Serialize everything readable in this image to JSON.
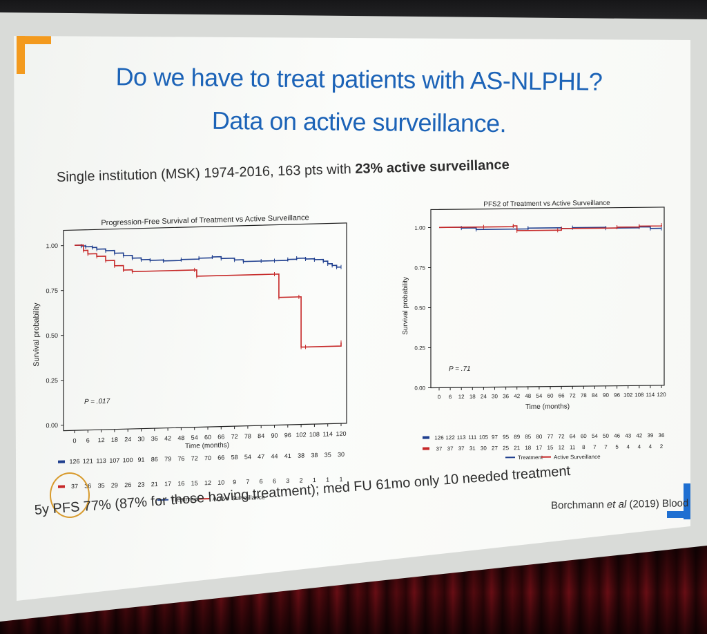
{
  "slide": {
    "title_line1": "Do we have to treat patients with AS-NLPHL?",
    "title_line2": "Data on active surveillance.",
    "subtitle_plain": "Single institution (MSK) 1974-2016, 163 pts with ",
    "subtitle_bold": "23% active surveillance",
    "footer": "5y PFS 77% (87% for those having treatment); med FU 61mo only 10 needed treatment",
    "citation_author": "Borchmann ",
    "citation_etal": "et al",
    "citation_rest": " (2019) Blood",
    "accent_blue": "#1c63b7",
    "accent_orange": "#f39a1e"
  },
  "chart_data": [
    {
      "type": "line",
      "title": "Progression-Free Survival of Treatment vs Active Surveillance",
      "xlabel": "Time (months)",
      "ylabel": "Survival probability",
      "xlim": [
        0,
        120
      ],
      "ylim": [
        0,
        1
      ],
      "xticks": [
        "0",
        "6",
        "12",
        "18",
        "24",
        "30",
        "36",
        "42",
        "48",
        "54",
        "60",
        "66",
        "72",
        "78",
        "84",
        "90",
        "96",
        "102",
        "108",
        "114",
        "120"
      ],
      "yticks": [
        "0.00",
        "0.25",
        "0.50",
        "0.75",
        "1.00"
      ],
      "annotation": "P = .017",
      "legend": [
        "Treatment",
        "Active Surveillance"
      ],
      "series": [
        {
          "name": "Treatment",
          "color": "#1f3f8f",
          "x": [
            0,
            3,
            5,
            8,
            10,
            14,
            18,
            22,
            26,
            30,
            34,
            40,
            48,
            56,
            62,
            66,
            72,
            76,
            84,
            90,
            96,
            100,
            104,
            108,
            112,
            114,
            116,
            118,
            120
          ],
          "y": [
            1.0,
            0.995,
            0.99,
            0.985,
            0.975,
            0.965,
            0.95,
            0.935,
            0.92,
            0.91,
            0.905,
            0.9,
            0.905,
            0.91,
            0.915,
            0.905,
            0.895,
            0.885,
            0.885,
            0.885,
            0.89,
            0.895,
            0.89,
            0.885,
            0.875,
            0.86,
            0.85,
            0.84,
            0.84
          ],
          "at_risk": [
            "126",
            "121",
            "113",
            "107",
            "100",
            "91",
            "86",
            "79",
            "76",
            "72",
            "70",
            "66",
            "58",
            "54",
            "47",
            "44",
            "41",
            "38",
            "38",
            "35",
            "30"
          ]
        },
        {
          "name": "Active Surveillance",
          "color": "#c62828",
          "x": [
            0,
            4,
            6,
            10,
            14,
            18,
            22,
            26,
            54,
            55,
            90,
            92,
            101,
            102,
            104,
            120
          ],
          "y": [
            1.0,
            0.97,
            0.95,
            0.935,
            0.91,
            0.88,
            0.855,
            0.845,
            0.845,
            0.81,
            0.81,
            0.68,
            0.68,
            0.4,
            0.4,
            0.42
          ],
          "at_risk": [
            "37",
            "36",
            "35",
            "29",
            "26",
            "23",
            "21",
            "17",
            "16",
            "15",
            "12",
            "10",
            "9",
            "7",
            "6",
            "6",
            "3",
            "2",
            "1",
            "1",
            "1"
          ]
        }
      ]
    },
    {
      "type": "line",
      "title": "PFS2 of Treatment vs Active Surveillance",
      "xlabel": "Time (months)",
      "ylabel": "Survival probability",
      "xlim": [
        0,
        120
      ],
      "ylim": [
        0,
        1
      ],
      "xticks": [
        "0",
        "6",
        "12",
        "18",
        "24",
        "30",
        "36",
        "42",
        "48",
        "54",
        "60",
        "66",
        "72",
        "78",
        "84",
        "90",
        "96",
        "102",
        "108",
        "114",
        "120"
      ],
      "yticks": [
        "0.00",
        "0.25",
        "0.50",
        "0.75",
        "1.00"
      ],
      "annotation": "P = .71",
      "legend": [
        "Treatment",
        "Active Surveillance"
      ],
      "series": [
        {
          "name": "Treatment",
          "color": "#1f3f8f",
          "x": [
            0,
            12,
            20,
            48,
            66,
            72,
            90,
            108,
            114,
            120
          ],
          "y": [
            1.0,
            0.995,
            0.985,
            0.99,
            0.985,
            0.99,
            0.985,
            0.99,
            0.98,
            0.98
          ],
          "at_risk": [
            "126",
            "122",
            "113",
            "111",
            "105",
            "97",
            "95",
            "89",
            "85",
            "80",
            "77",
            "72",
            "64",
            "60",
            "54",
            "50",
            "46",
            "43",
            "42",
            "39",
            "36"
          ]
        },
        {
          "name": "Active Surveillance",
          "color": "#c62828",
          "x": [
            0,
            24,
            40,
            42,
            64,
            66,
            96,
            108,
            120
          ],
          "y": [
            1.0,
            1.0,
            1.005,
            0.975,
            0.975,
            0.985,
            0.99,
            0.995,
            1.0
          ],
          "at_risk": [
            "37",
            "37",
            "37",
            "31",
            "30",
            "27",
            "25",
            "21",
            "18",
            "17",
            "15",
            "12",
            "11",
            "8",
            "7",
            "7",
            "5",
            "4",
            "4",
            "4",
            "2"
          ]
        }
      ]
    }
  ]
}
